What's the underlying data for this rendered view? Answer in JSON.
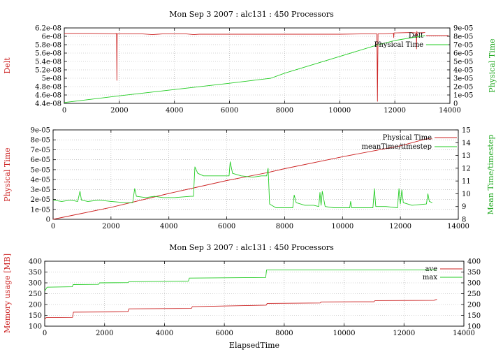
{
  "chart_data": [
    {
      "type": "line",
      "title": "Mon Sep 3 2007 : alc131 : 450 Processors",
      "xlabel": "",
      "ylabel_left": "Delt",
      "ylabel_right": "Physical Time",
      "xlim": [
        0,
        14000
      ],
      "ylim_left": [
        4.4e-08,
        6.2e-08
      ],
      "ylim_right": [
        0,
        9e-05
      ],
      "x_ticks": [
        "0",
        "2000",
        "4000",
        "6000",
        "8000",
        "10000",
        "12000",
        "14000"
      ],
      "y_ticks_left": [
        "4.4e-08",
        "4.6e-08",
        "4.8e-08",
        "5e-08",
        "5.2e-08",
        "5.4e-08",
        "5.6e-08",
        "5.8e-08",
        "6e-08",
        "6.2e-08"
      ],
      "y_ticks_right": [
        "0",
        "1e-05",
        "2e-05",
        "3e-05",
        "4e-05",
        "5e-05",
        "6e-05",
        "7e-05",
        "8e-05",
        "9e-05"
      ],
      "grid": true,
      "legend_position": "top-right",
      "series": [
        {
          "name": "Delt",
          "axis": "left",
          "color": "#cc2222",
          "points": [
            [
              0,
              6.07e-08
            ],
            [
              1000,
              6.07e-08
            ],
            [
              1850,
              6.06e-08
            ],
            [
              1900,
              6.07e-08
            ],
            [
              1910,
              4.95e-08
            ],
            [
              1920,
              6.06e-08
            ],
            [
              2000,
              6.06e-08
            ],
            [
              2800,
              6.06e-08
            ],
            [
              3200,
              6.04e-08
            ],
            [
              3400,
              6.05e-08
            ],
            [
              3600,
              6.06e-08
            ],
            [
              4400,
              6.06e-08
            ],
            [
              4700,
              6.04e-08
            ],
            [
              4900,
              6.05e-08
            ],
            [
              5600,
              6.05e-08
            ],
            [
              6200,
              6.05e-08
            ],
            [
              7400,
              6.05e-08
            ],
            [
              8000,
              6.05e-08
            ],
            [
              9000,
              6.05e-08
            ],
            [
              10000,
              6.05e-08
            ],
            [
              11000,
              6.06e-08
            ],
            [
              11350,
              6.06e-08
            ],
            [
              11370,
              4.45e-08
            ],
            [
              11390,
              6.06e-08
            ],
            [
              11600,
              6.06e-08
            ],
            [
              11900,
              6.07e-08
            ],
            [
              11950,
              6.07e-08
            ],
            [
              11960,
              5.97e-08
            ],
            [
              11970,
              6.08e-08
            ],
            [
              12600,
              6.09e-08
            ],
            [
              12780,
              6.08e-08
            ],
            [
              12790,
              5.7e-08
            ],
            [
              12800,
              6.12e-08
            ],
            [
              12810,
              6.08e-08
            ],
            [
              13100,
              6.09e-08
            ]
          ]
        },
        {
          "name": "Physical Time",
          "axis": "right",
          "color": "#22cc22",
          "points": [
            [
              0,
              1e-06
            ],
            [
              2000,
              9e-06
            ],
            [
              4000,
              1.65e-05
            ],
            [
              6000,
              2.4e-05
            ],
            [
              7500,
              3e-05
            ],
            [
              8000,
              3.6e-05
            ],
            [
              10000,
              5.6e-05
            ],
            [
              11300,
              6.9e-05
            ],
            [
              12000,
              7.5e-05
            ],
            [
              13100,
              8.1e-05
            ]
          ]
        }
      ]
    },
    {
      "type": "line",
      "title": "",
      "xlabel": "",
      "ylabel_left": "Physical Time",
      "ylabel_right": "Mean Time/timestep",
      "xlim": [
        0,
        14000
      ],
      "ylim_left": [
        0,
        9e-05
      ],
      "ylim_right": [
        8,
        15
      ],
      "x_ticks": [
        "0",
        "2000",
        "4000",
        "6000",
        "8000",
        "10000",
        "12000",
        "14000"
      ],
      "y_ticks_left": [
        "0",
        "1e-05",
        "2e-05",
        "3e-05",
        "4e-05",
        "5e-05",
        "6e-05",
        "7e-05",
        "8e-05",
        "9e-05"
      ],
      "y_ticks_right": [
        "8",
        "9",
        "10",
        "11",
        "12",
        "13",
        "14",
        "15"
      ],
      "grid": true,
      "legend_position": "top-right",
      "series": [
        {
          "name": "Physical Time",
          "axis": "left",
          "color": "#cc2222",
          "points": [
            [
              0,
              0
            ],
            [
              1000,
              6e-06
            ],
            [
              2000,
              1.2e-05
            ],
            [
              4000,
              2.6e-05
            ],
            [
              6000,
              3.9e-05
            ],
            [
              7400,
              4.7e-05
            ],
            [
              8000,
              5.1e-05
            ],
            [
              10000,
              6.3e-05
            ],
            [
              12000,
              7.4e-05
            ],
            [
              12900,
              8.1e-05
            ],
            [
              13100,
              8.1e-05
            ]
          ]
        },
        {
          "name": "meanTime/timestep",
          "axis": "right",
          "color": "#22cc22",
          "points": [
            [
              0,
              9.5
            ],
            [
              300,
              9.4
            ],
            [
              600,
              9.5
            ],
            [
              850,
              9.4
            ],
            [
              930,
              10.2
            ],
            [
              980,
              9.5
            ],
            [
              1200,
              9.4
            ],
            [
              1600,
              9.5
            ],
            [
              2000,
              9.4
            ],
            [
              2500,
              9.3
            ],
            [
              2750,
              9.3
            ],
            [
              2820,
              10.4
            ],
            [
              2880,
              9.8
            ],
            [
              3200,
              9.7
            ],
            [
              3500,
              9.8
            ],
            [
              3800,
              9.7
            ],
            [
              4200,
              9.7
            ],
            [
              4750,
              9.8
            ],
            [
              4850,
              9.8
            ],
            [
              4900,
              12.1
            ],
            [
              5000,
              11.6
            ],
            [
              5200,
              11.4
            ],
            [
              5600,
              11.4
            ],
            [
              6000,
              11.4
            ],
            [
              6080,
              11.4
            ],
            [
              6120,
              12.5
            ],
            [
              6200,
              11.6
            ],
            [
              6500,
              11.4
            ],
            [
              6900,
              11.3
            ],
            [
              7200,
              11.4
            ],
            [
              7380,
              11.4
            ],
            [
              7430,
              12.0
            ],
            [
              7480,
              9.2
            ],
            [
              7700,
              8.9
            ],
            [
              8000,
              8.9
            ],
            [
              8280,
              8.9
            ],
            [
              8330,
              9.9
            ],
            [
              8400,
              9.3
            ],
            [
              8700,
              9.1
            ],
            [
              9000,
              9.1
            ],
            [
              9180,
              9.0
            ],
            [
              9220,
              10.1
            ],
            [
              9260,
              9.1
            ],
            [
              9300,
              10.2
            ],
            [
              9400,
              9.0
            ],
            [
              9700,
              8.9
            ],
            [
              10000,
              8.9
            ],
            [
              10250,
              8.9
            ],
            [
              10280,
              9.4
            ],
            [
              10320,
              8.9
            ],
            [
              10700,
              8.9
            ],
            [
              11050,
              8.9
            ],
            [
              11100,
              10.4
            ],
            [
              11150,
              9.0
            ],
            [
              11500,
              9.0
            ],
            [
              11900,
              8.9
            ],
            [
              11950,
              10.4
            ],
            [
              12000,
              9.2
            ],
            [
              12050,
              10.3
            ],
            [
              12100,
              9.3
            ],
            [
              12400,
              9.1
            ],
            [
              12900,
              9.2
            ],
            [
              12950,
              10.0
            ],
            [
              13000,
              9.4
            ],
            [
              13100,
              9.3
            ]
          ]
        }
      ]
    },
    {
      "type": "line",
      "title": "Mon Sep 3 2007 : alc131 : 450 Processors",
      "xlabel": "ElapsedTime",
      "ylabel_left": "Memory usage [MB]",
      "ylabel_right": "",
      "xlim": [
        0,
        14000
      ],
      "ylim_left": [
        100,
        400
      ],
      "ylim_right": [
        100,
        400
      ],
      "x_ticks": [
        "0",
        "2000",
        "4000",
        "6000",
        "8000",
        "10000",
        "12000",
        "14000"
      ],
      "y_ticks_left": [
        "100",
        "150",
        "200",
        "250",
        "300",
        "350",
        "400"
      ],
      "y_ticks_right": [
        "100",
        "150",
        "200",
        "250",
        "300",
        "350",
        "400"
      ],
      "grid": true,
      "legend_position": "top-right",
      "series": [
        {
          "name": "ave",
          "axis": "left",
          "color": "#cc2222",
          "points": [
            [
              0,
              131
            ],
            [
              50,
              140
            ],
            [
              930,
              141
            ],
            [
              960,
              165
            ],
            [
              2780,
              166
            ],
            [
              2810,
              180
            ],
            [
              4900,
              182
            ],
            [
              4930,
              190
            ],
            [
              7400,
              197
            ],
            [
              7430,
              205
            ],
            [
              9200,
              207
            ],
            [
              9230,
              212
            ],
            [
              11000,
              213
            ],
            [
              11030,
              218
            ],
            [
              13000,
              219
            ],
            [
              13100,
              224
            ]
          ]
        },
        {
          "name": "max",
          "axis": "left",
          "color": "#22cc22",
          "points": [
            [
              0,
              262
            ],
            [
              80,
              280
            ],
            [
              920,
              282
            ],
            [
              950,
              292
            ],
            [
              1800,
              293
            ],
            [
              1830,
              300
            ],
            [
              2780,
              301
            ],
            [
              2810,
              305
            ],
            [
              4800,
              308
            ],
            [
              4830,
              322
            ],
            [
              7380,
              325
            ],
            [
              7410,
              360
            ],
            [
              13100,
              360
            ]
          ]
        }
      ]
    }
  ]
}
